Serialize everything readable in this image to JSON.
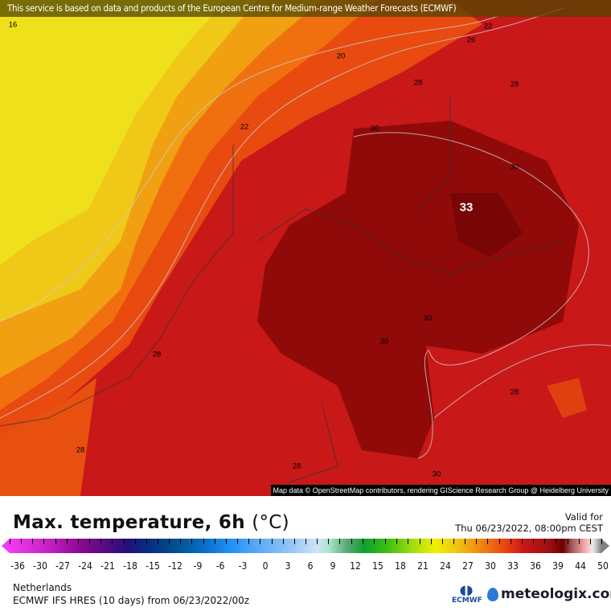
{
  "banner": "This service is based on data and products of the European Centre for Medium-range Weather Forecasts (ECMWF)",
  "attribution": "Map data © OpenStreetMap contributors, rendering GIScience Research Group @ Heidelberg University",
  "contour_labels": [
    "16",
    "20",
    "22",
    "22",
    "26",
    "28",
    "28",
    "30",
    "30",
    "33",
    "30",
    "30",
    "28",
    "28",
    "28",
    "28",
    "30"
  ],
  "title": {
    "main": "Max. temperature, 6h",
    "unit": "(°C)"
  },
  "valid": {
    "label": "Valid for",
    "time": "Thu 06/23/2022, 08:00pm CEST"
  },
  "colorbar": {
    "ticks": [
      "-36",
      "-30",
      "-27",
      "-24",
      "-21",
      "-18",
      "-15",
      "-12",
      "-9",
      "-6",
      "-3",
      "0",
      "3",
      "6",
      "9",
      "12",
      "15",
      "18",
      "21",
      "24",
      "27",
      "30",
      "33",
      "36",
      "39",
      "44",
      "50"
    ]
  },
  "region": "Netherlands",
  "model": "ECMWF IFS HRES (10 days) from  06/23/2022/00z",
  "logos": {
    "ecmwf": "ECMWF",
    "meteologix": "meteologix.com"
  },
  "colors": {
    "yellow": "#f0e020",
    "orange": "#f08010",
    "red": "#c81818",
    "darkred": "#8a0808"
  }
}
